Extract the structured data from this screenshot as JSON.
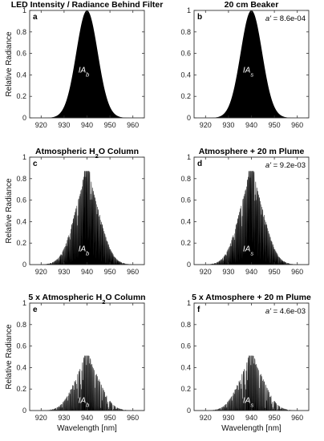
{
  "chart_data": [
    {
      "type": "area",
      "panel": "a",
      "title": "LED Intensity / Radiance Behind Filter",
      "ylabel": "Relative Radiance",
      "xlabel": "",
      "xlim": [
        915,
        965
      ],
      "ylim": [
        0,
        1
      ],
      "xticks": [
        920,
        930,
        940,
        950,
        960
      ],
      "yticks": [
        0,
        0.2,
        0.4,
        0.6,
        0.8,
        1
      ],
      "shape": "gaussian",
      "peak_wavelength": 940,
      "peak_value": 1.0,
      "sigma_nm": 4.7,
      "region_label": "IA",
      "region_label_sub": "b",
      "annotation": ""
    },
    {
      "type": "area",
      "panel": "b",
      "title": "20 cm Beaker",
      "ylabel": "",
      "xlabel": "",
      "xlim": [
        915,
        965
      ],
      "ylim": [
        0,
        1
      ],
      "xticks": [
        920,
        930,
        940,
        950,
        960
      ],
      "yticks": [
        0,
        0.2,
        0.4,
        0.6,
        0.8,
        1
      ],
      "shape": "gaussian",
      "peak_wavelength": 940,
      "peak_value": 1.0,
      "sigma_nm": 4.7,
      "region_label": "IA",
      "region_label_sub": "s",
      "annotation": "a' = 8.6e-04"
    },
    {
      "type": "area",
      "panel": "c",
      "title": "Atmospheric H2O Column",
      "title_parts": [
        "Atmospheric H",
        "2",
        "O Column"
      ],
      "ylabel": "Relative Radiance",
      "xlabel": "",
      "xlim": [
        915,
        965
      ],
      "ylim": [
        0,
        1
      ],
      "xticks": [
        920,
        930,
        940,
        950,
        960
      ],
      "yticks": [
        0,
        0.2,
        0.4,
        0.6,
        0.8,
        1
      ],
      "shape": "absorption-lines",
      "peak_wavelength": 940,
      "peak_value": 0.87,
      "absorption_strength": 1,
      "region_label": "IA",
      "region_label_sub": "b",
      "annotation": ""
    },
    {
      "type": "area",
      "panel": "d",
      "title": "Atmosphere + 20 m Plume",
      "ylabel": "",
      "xlabel": "",
      "xlim": [
        915,
        965
      ],
      "ylim": [
        0,
        1
      ],
      "xticks": [
        920,
        930,
        940,
        950,
        960
      ],
      "yticks": [
        0,
        0.2,
        0.4,
        0.6,
        0.8,
        1
      ],
      "shape": "absorption-lines",
      "peak_wavelength": 940,
      "peak_value": 0.87,
      "absorption_strength": 1.05,
      "region_label": "IA",
      "region_label_sub": "s",
      "annotation": "a' = 9.2e-03"
    },
    {
      "type": "area",
      "panel": "e",
      "title": "5 x Atmospheric H2O Column",
      "title_parts": [
        "5 x Atmospheric H",
        "2",
        "O Column"
      ],
      "ylabel": "Relative Radiance",
      "xlabel": "Wavelength [nm]",
      "xlim": [
        915,
        965
      ],
      "ylim": [
        0,
        1
      ],
      "xticks": [
        920,
        930,
        940,
        950,
        960
      ],
      "yticks": [
        0,
        0.2,
        0.4,
        0.6,
        0.8,
        1
      ],
      "shape": "absorption-lines",
      "peak_wavelength": 940,
      "peak_value": 0.51,
      "absorption_strength": 5,
      "region_label": "IA",
      "region_label_sub": "b",
      "annotation": ""
    },
    {
      "type": "area",
      "panel": "f",
      "title": "5 x Atmosphere + 20 m Plume",
      "ylabel": "",
      "xlabel": "Wavelength [nm]",
      "xlim": [
        915,
        965
      ],
      "ylim": [
        0,
        1
      ],
      "xticks": [
        920,
        930,
        940,
        950,
        960
      ],
      "yticks": [
        0,
        0.2,
        0.4,
        0.6,
        0.8,
        1
      ],
      "shape": "absorption-lines",
      "peak_wavelength": 940,
      "peak_value": 0.51,
      "absorption_strength": 5.05,
      "region_label": "IA",
      "region_label_sub": "s",
      "annotation": "a' = 4.6e-03"
    }
  ]
}
